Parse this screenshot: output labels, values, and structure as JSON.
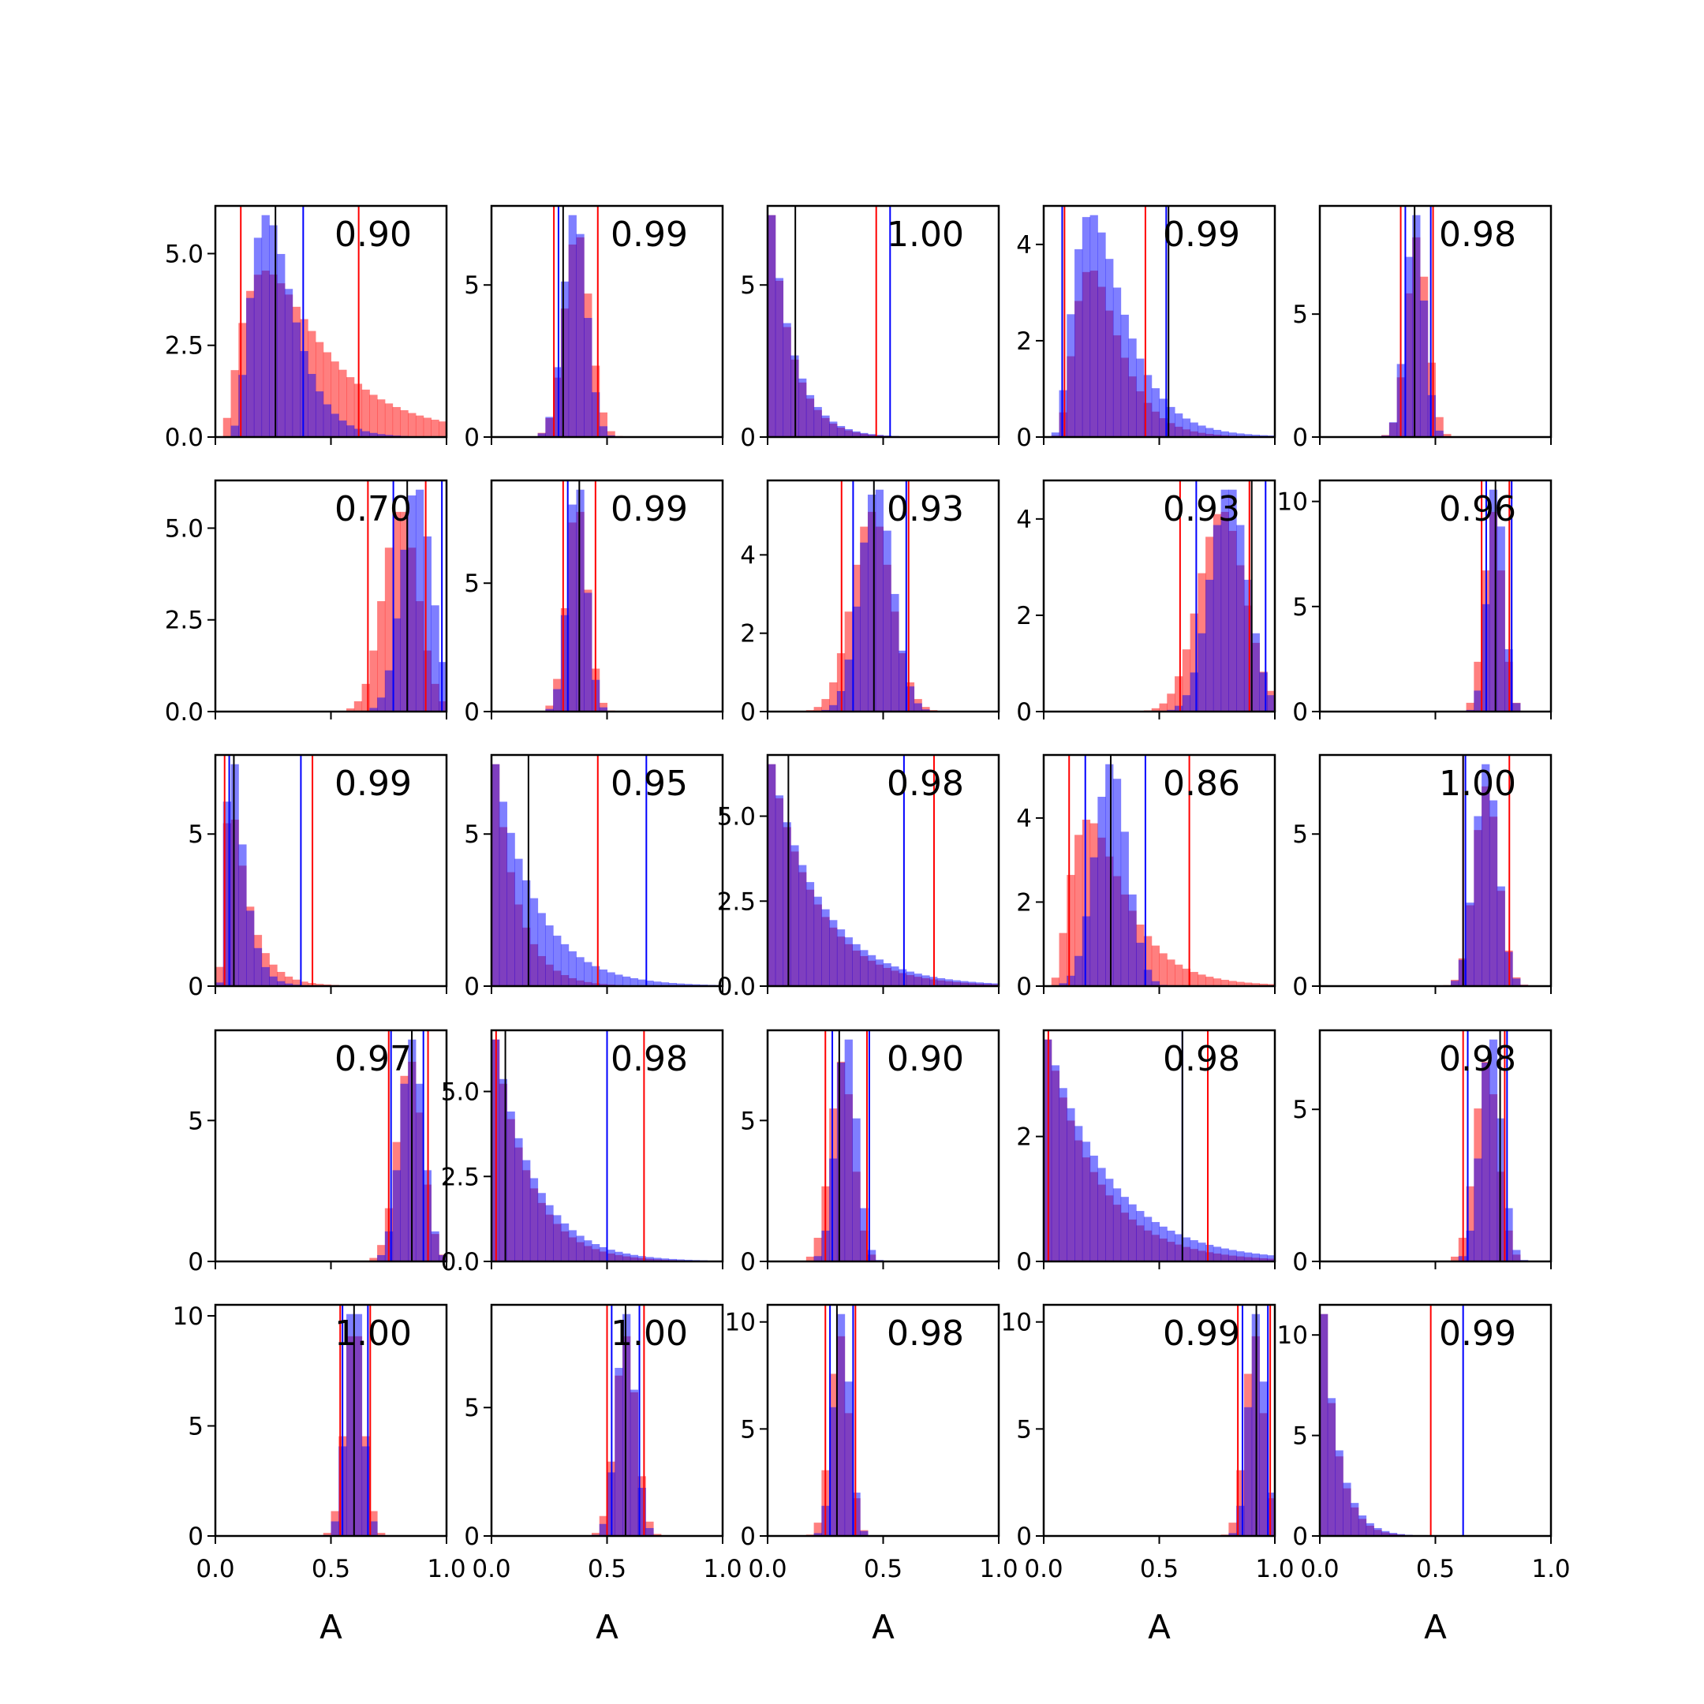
{
  "chart_data": {
    "type": "histogram-grid",
    "rows": 5,
    "cols": 5,
    "xlim": [
      0,
      1
    ],
    "xticks": [
      0.0,
      0.5,
      1.0
    ],
    "xtick_labels": [
      "0.0",
      "0.5",
      "1.0"
    ],
    "xlabel": "A",
    "colors": {
      "red": "#ff0000",
      "blue": "#0000ff",
      "black": "#000000",
      "overlap": "#8040c0"
    },
    "panels": [
      {
        "label": "0.90",
        "ylim": [
          0,
          6.3
        ],
        "yticks": [
          0,
          2.5,
          5.0
        ],
        "ytick_labels": [
          "0.0",
          "2.5",
          "5.0"
        ],
        "dist": {
          "type": "lognormal",
          "mu": -1.35,
          "sigma": 0.4
        },
        "red_dist": {
          "type": "lognormal",
          "mu": -1.05,
          "sigma": 0.7
        },
        "lines": {
          "red": [
            0.11,
            0.62
          ],
          "blue": [
            0.38
          ],
          "black": [
            0.26
          ]
        }
      },
      {
        "label": "0.99",
        "ylim": [
          0,
          7.6
        ],
        "yticks": [
          0,
          5
        ],
        "ytick_labels": [
          "0",
          "5"
        ],
        "dist": {
          "type": "normal",
          "mu": 0.36,
          "sigma": 0.05
        },
        "red_dist": {
          "type": "normal",
          "mu": 0.37,
          "sigma": 0.055
        },
        "lines": {
          "red": [
            0.27,
            0.46
          ],
          "blue": [
            0.29
          ],
          "black": [
            0.31
          ]
        }
      },
      {
        "label": "1.00",
        "ylim": [
          0,
          7.6
        ],
        "yticks": [
          0,
          5
        ],
        "ytick_labels": [
          "0",
          "5"
        ],
        "dist": {
          "type": "exp",
          "scale": 0.1
        },
        "red_dist": {
          "type": "exp",
          "scale": 0.095
        },
        "lines": {
          "red": [
            0.47
          ],
          "blue": [
            0.53
          ],
          "black": [
            0.12
          ]
        }
      },
      {
        "label": "0.99",
        "ylim": [
          0,
          4.8
        ],
        "yticks": [
          0,
          2,
          4
        ],
        "ytick_labels": [
          "0",
          "2",
          "4"
        ],
        "dist": {
          "type": "lognormal",
          "mu": -1.35,
          "sigma": 0.5
        },
        "red_dist": {
          "type": "lognormal",
          "mu": -1.4,
          "sigma": 0.45
        },
        "lines": {
          "red": [
            0.09,
            0.44
          ],
          "blue": [
            0.08,
            0.53
          ],
          "black": [
            0.54
          ]
        }
      },
      {
        "label": "0.98",
        "ylim": [
          0,
          9.4
        ],
        "yticks": [
          0,
          5
        ],
        "ytick_labels": [
          "0",
          "5"
        ],
        "dist": {
          "type": "normal",
          "mu": 0.41,
          "sigma": 0.04
        },
        "red_dist": {
          "type": "normal",
          "mu": 0.42,
          "sigma": 0.045
        },
        "lines": {
          "red": [
            0.35,
            0.49
          ],
          "blue": [
            0.37,
            0.48
          ],
          "black": [
            0.41
          ]
        }
      },
      {
        "label": "0.70",
        "ylim": [
          0,
          6.3
        ],
        "yticks": [
          0,
          2.5,
          5.0
        ],
        "ytick_labels": [
          "0.0",
          "2.5",
          "5.0"
        ],
        "dist": {
          "type": "normal",
          "mu": 0.87,
          "sigma": 0.065
        },
        "red_dist": {
          "type": "normal",
          "mu": 0.8,
          "sigma": 0.075
        },
        "lines": {
          "red": [
            0.66,
            0.91
          ],
          "blue": [
            0.77,
            0.98
          ],
          "black": [
            0.83
          ]
        }
      },
      {
        "label": "0.99",
        "ylim": [
          0,
          9.0
        ],
        "yticks": [
          0,
          5
        ],
        "ytick_labels": [
          "0",
          "5"
        ],
        "dist": {
          "type": "normal",
          "mu": 0.37,
          "sigma": 0.04
        },
        "red_dist": {
          "type": "normal",
          "mu": 0.37,
          "sigma": 0.045
        },
        "lines": {
          "red": [
            0.31,
            0.45
          ],
          "blue": [
            0.33
          ],
          "black": [
            0.38
          ]
        }
      },
      {
        "label": "0.93",
        "ylim": [
          0,
          5.9
        ],
        "yticks": [
          0,
          2,
          4
        ],
        "ytick_labels": [
          "0",
          "2",
          "4"
        ],
        "dist": {
          "type": "normal",
          "mu": 0.47,
          "sigma": 0.07
        },
        "red_dist": {
          "type": "normal",
          "mu": 0.45,
          "sigma": 0.085
        },
        "lines": {
          "red": [
            0.32,
            0.61
          ],
          "blue": [
            0.37,
            0.6
          ],
          "black": [
            0.46
          ]
        }
      },
      {
        "label": "0.93",
        "ylim": [
          0,
          4.8
        ],
        "yticks": [
          0,
          2,
          4
        ],
        "ytick_labels": [
          "0",
          "2",
          "4"
        ],
        "dist": {
          "type": "normal",
          "mu": 0.8,
          "sigma": 0.08
        },
        "red_dist": {
          "type": "normal",
          "mu": 0.77,
          "sigma": 0.1
        },
        "lines": {
          "red": [
            0.59,
            0.89
          ],
          "blue": [
            0.66,
            0.96
          ],
          "black": [
            0.9
          ]
        }
      },
      {
        "label": "0.96",
        "ylim": [
          0,
          11.0
        ],
        "yticks": [
          0,
          5,
          10
        ],
        "ytick_labels": [
          "0",
          "5",
          "10"
        ],
        "dist": {
          "type": "normal",
          "mu": 0.76,
          "sigma": 0.035
        },
        "red_dist": {
          "type": "normal",
          "mu": 0.75,
          "sigma": 0.04
        },
        "lines": {
          "red": [
            0.7,
            0.82
          ],
          "blue": [
            0.72,
            0.83
          ],
          "black": [
            0.76
          ]
        }
      },
      {
        "label": "0.99",
        "ylim": [
          0,
          7.6
        ],
        "yticks": [
          0,
          5
        ],
        "ytick_labels": [
          "0",
          "5"
        ],
        "dist": {
          "type": "lognormal",
          "mu": -2.4,
          "sigma": 0.5
        },
        "red_dist": {
          "type": "lognormal",
          "mu": -2.3,
          "sigma": 0.65
        },
        "lines": {
          "red": [
            0.04,
            0.42
          ],
          "blue": [
            0.06,
            0.37
          ],
          "black": [
            0.08
          ]
        }
      },
      {
        "label": "0.95",
        "ylim": [
          0,
          7.6
        ],
        "yticks": [
          0,
          5
        ],
        "ytick_labels": [
          "0",
          "5"
        ],
        "dist": {
          "type": "exp",
          "scale": 0.18
        },
        "red_dist": {
          "type": "exp",
          "scale": 0.1
        },
        "lines": {
          "red": [
            0.46
          ],
          "blue": [
            0.67
          ],
          "black": [
            0.16
          ]
        }
      },
      {
        "label": "0.98",
        "ylim": [
          0,
          6.8
        ],
        "yticks": [
          0,
          2.5,
          5.0
        ],
        "ytick_labels": [
          "0.0",
          "2.5",
          "5.0"
        ],
        "dist": {
          "type": "exp",
          "scale": 0.22
        },
        "red_dist": {
          "type": "exp",
          "scale": 0.2
        },
        "lines": {
          "red": [
            0.72
          ],
          "blue": [
            0.59
          ],
          "black": [
            0.09
          ]
        }
      },
      {
        "label": "0.86",
        "ylim": [
          0,
          5.5
        ],
        "yticks": [
          0,
          2,
          4
        ],
        "ytick_labels": [
          "0",
          "2",
          "4"
        ],
        "dist": {
          "type": "normal",
          "mu": 0.29,
          "sigma": 0.07
        },
        "red_dist": {
          "type": "lognormal",
          "mu": -1.35,
          "sigma": 0.55
        },
        "lines": {
          "red": [
            0.11,
            0.63
          ],
          "blue": [
            0.18,
            0.44
          ],
          "black": [
            0.29
          ]
        }
      },
      {
        "label": "1.00",
        "ylim": [
          0,
          7.6
        ],
        "yticks": [
          0,
          5
        ],
        "ytick_labels": [
          "0",
          "5"
        ],
        "dist": {
          "type": "normal",
          "mu": 0.72,
          "sigma": 0.05
        },
        "red_dist": {
          "type": "normal",
          "mu": 0.72,
          "sigma": 0.052
        },
        "lines": {
          "red": [
            0.62,
            0.82
          ],
          "blue": [
            0.63
          ],
          "black": [
            0.62
          ]
        }
      },
      {
        "label": "0.97",
        "ylim": [
          0,
          8.2
        ],
        "yticks": [
          0,
          5
        ],
        "ytick_labels": [
          "0",
          "5"
        ],
        "dist": {
          "type": "normal",
          "mu": 0.85,
          "sigma": 0.05
        },
        "red_dist": {
          "type": "normal",
          "mu": 0.84,
          "sigma": 0.055
        },
        "lines": {
          "red": [
            0.75,
            0.92
          ],
          "blue": [
            0.76,
            0.9
          ],
          "black": [
            0.85
          ]
        }
      },
      {
        "label": "0.98",
        "ylim": [
          0,
          6.8
        ],
        "yticks": [
          0,
          2.5,
          5.0
        ],
        "ytick_labels": [
          "0.0",
          "2.5",
          "5.0"
        ],
        "dist": {
          "type": "exp",
          "scale": 0.17
        },
        "red_dist": {
          "type": "exp",
          "scale": 0.15
        },
        "lines": {
          "red": [
            0.02,
            0.66
          ],
          "blue": [
            0.5
          ],
          "black": [
            0.06
          ]
        }
      },
      {
        "label": "0.90",
        "ylim": [
          0,
          8.2
        ],
        "yticks": [
          0,
          5
        ],
        "ytick_labels": [
          "0",
          "5"
        ],
        "dist": {
          "type": "normal",
          "mu": 0.34,
          "sigma": 0.045
        },
        "red_dist": {
          "type": "normal",
          "mu": 0.32,
          "sigma": 0.05
        },
        "lines": {
          "red": [
            0.25,
            0.43
          ],
          "blue": [
            0.28,
            0.44
          ],
          "black": [
            0.31
          ]
        }
      },
      {
        "label": "0.98",
        "ylim": [
          0,
          3.7
        ],
        "yticks": [
          0,
          2
        ],
        "ytick_labels": [
          "0",
          "2"
        ],
        "dist": {
          "type": "exp",
          "scale": 0.27
        },
        "red_dist": {
          "type": "exp",
          "scale": 0.22
        },
        "lines": {
          "red": [
            0.02,
            0.71
          ],
          "blue": [
            0.6
          ],
          "black": [
            0.6
          ]
        }
      },
      {
        "label": "0.98",
        "ylim": [
          0,
          7.6
        ],
        "yticks": [
          0,
          5
        ],
        "ytick_labels": [
          "0",
          "5"
        ],
        "dist": {
          "type": "normal",
          "mu": 0.74,
          "sigma": 0.045
        },
        "red_dist": {
          "type": "normal",
          "mu": 0.72,
          "sigma": 0.05
        },
        "lines": {
          "red": [
            0.62,
            0.8
          ],
          "blue": [
            0.64,
            0.81
          ],
          "black": [
            0.78
          ]
        }
      },
      {
        "label": "1.00",
        "ylim": [
          0,
          10.5
        ],
        "yticks": [
          0,
          5,
          10
        ],
        "ytick_labels": [
          "0",
          "5",
          "10"
        ],
        "dist": {
          "type": "normal",
          "mu": 0.6,
          "sigma": 0.035
        },
        "red_dist": {
          "type": "normal",
          "mu": 0.6,
          "sigma": 0.04
        },
        "lines": {
          "red": [
            0.54,
            0.67
          ],
          "blue": [
            0.55,
            0.66
          ],
          "black": [
            0.6
          ]
        }
      },
      {
        "label": "1.00",
        "ylim": [
          0,
          9.0
        ],
        "yticks": [
          0,
          5
        ],
        "ytick_labels": [
          "0",
          "5"
        ],
        "dist": {
          "type": "normal",
          "mu": 0.58,
          "sigma": 0.04
        },
        "red_dist": {
          "type": "normal",
          "mu": 0.58,
          "sigma": 0.045
        },
        "lines": {
          "red": [
            0.5,
            0.66
          ],
          "blue": [
            0.52,
            0.64
          ],
          "black": [
            0.58
          ]
        }
      },
      {
        "label": "0.98",
        "ylim": [
          0,
          10.8
        ],
        "yticks": [
          0,
          5,
          10
        ],
        "ytick_labels": [
          "0",
          "5",
          "10"
        ],
        "dist": {
          "type": "normal",
          "mu": 0.32,
          "sigma": 0.035
        },
        "red_dist": {
          "type": "normal",
          "mu": 0.31,
          "sigma": 0.04
        },
        "lines": {
          "red": [
            0.25,
            0.38
          ],
          "blue": [
            0.27,
            0.37
          ],
          "black": [
            0.3
          ]
        }
      },
      {
        "label": "0.99",
        "ylim": [
          0,
          10.8
        ],
        "yticks": [
          0,
          5,
          10
        ],
        "ytick_labels": [
          "0",
          "5",
          "10"
        ],
        "dist": {
          "type": "normal",
          "mu": 0.92,
          "sigma": 0.035
        },
        "red_dist": {
          "type": "normal",
          "mu": 0.91,
          "sigma": 0.04
        },
        "lines": {
          "red": [
            0.84,
            0.98
          ],
          "blue": [
            0.86,
            0.97
          ],
          "black": [
            0.92
          ]
        }
      },
      {
        "label": "0.99",
        "ylim": [
          0,
          11.5
        ],
        "yticks": [
          0,
          5,
          10
        ],
        "ytick_labels": [
          "0",
          "5",
          "10"
        ],
        "dist": {
          "type": "exp",
          "scale": 0.07
        },
        "red_dist": {
          "type": "exp",
          "scale": 0.065
        },
        "lines": {
          "red": [
            0.48
          ],
          "blue": [
            0.62
          ],
          "black": [
            0.0
          ]
        }
      }
    ]
  }
}
